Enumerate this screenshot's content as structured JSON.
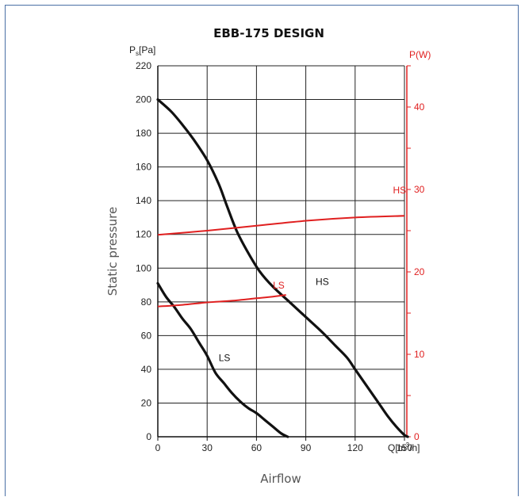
{
  "chart_data": {
    "type": "line",
    "title": "EBB-175 DESIGN",
    "xlabel": "Airflow",
    "ylabel": "Static pressure",
    "x_unit_prefix": "Q[m",
    "x_unit_sup": "3",
    "x_unit_suffix": "/h]",
    "y_unit_main": "P",
    "y_unit_sub": "s",
    "y_unit_suffix": "[Pa]",
    "y2_unit": "P(W)",
    "xlim": [
      0,
      150
    ],
    "ylim": [
      0,
      220
    ],
    "y2lim": [
      0,
      45
    ],
    "x_ticks": [
      "0",
      "30",
      "60",
      "90",
      "120",
      "150"
    ],
    "y_ticks": [
      "0",
      "20",
      "40",
      "60",
      "80",
      "100",
      "120",
      "140",
      "160",
      "180",
      "200",
      "220"
    ],
    "y2_ticks": [
      "0",
      "10",
      "20",
      "30",
      "40"
    ],
    "grid": true,
    "pressure_series": [
      {
        "name": "HS",
        "x": [
          0,
          8,
          15,
          22,
          30,
          37,
          42,
          48,
          55,
          62,
          70,
          80,
          90,
          100,
          108,
          115,
          120,
          125,
          130,
          135,
          140,
          145,
          150,
          152
        ],
        "y": [
          200,
          193,
          185,
          176,
          164,
          150,
          137,
          122,
          109,
          98,
          89,
          80,
          71,
          62,
          54,
          47,
          40,
          33,
          26,
          19,
          12,
          6,
          1,
          0
        ]
      },
      {
        "name": "LS",
        "x": [
          0,
          5,
          10,
          15,
          20,
          25,
          30,
          35,
          40,
          45,
          50,
          55,
          60,
          65,
          70,
          75,
          79
        ],
        "y": [
          91,
          83,
          77,
          70,
          64,
          56,
          48,
          38,
          32,
          26,
          21,
          17,
          14,
          10,
          6,
          2,
          0
        ]
      }
    ],
    "power_series": [
      {
        "name": "HS",
        "x": [
          0,
          30,
          60,
          90,
          120,
          150
        ],
        "y": [
          24.5,
          25.0,
          25.6,
          26.2,
          26.6,
          26.8
        ]
      },
      {
        "name": "LS",
        "x": [
          0,
          15,
          30,
          45,
          60,
          70,
          78
        ],
        "y": [
          15.8,
          16.0,
          16.3,
          16.5,
          16.8,
          17.0,
          17.2
        ]
      }
    ],
    "colors": {
      "pressure": "#111111",
      "power": "#e02020",
      "grid": "#222222"
    }
  }
}
